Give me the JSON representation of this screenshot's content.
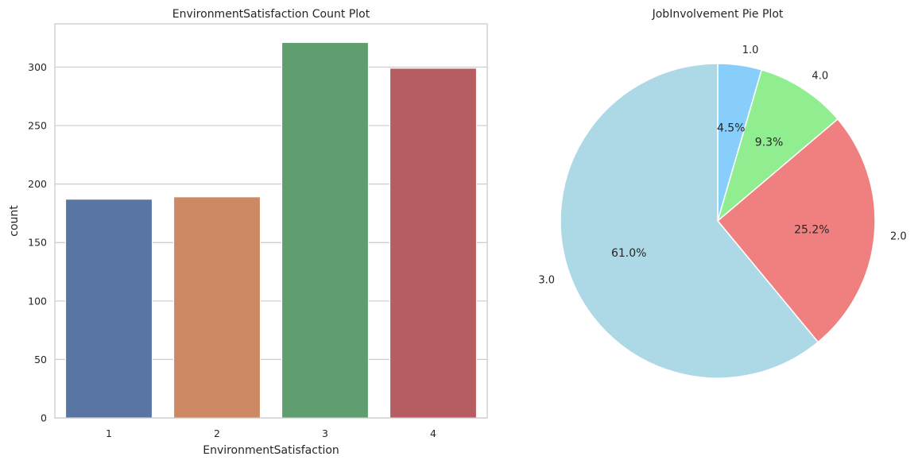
{
  "chart_data": [
    {
      "type": "bar",
      "title": "EnvironmentSatisfaction Count Plot",
      "xlabel": "EnvironmentSatisfaction",
      "ylabel": "count",
      "categories": [
        "1",
        "2",
        "3",
        "4"
      ],
      "values": [
        187,
        189,
        321,
        299
      ],
      "colors": [
        "#5875a4",
        "#cc8963",
        "#5f9e6e",
        "#b55d60"
      ],
      "ylim": [
        0,
        337
      ],
      "yticks": [
        0,
        50,
        100,
        150,
        200,
        250,
        300
      ],
      "grid": true
    },
    {
      "type": "pie",
      "title": "JobInvolvement Pie Plot",
      "slices": [
        {
          "label": "1.0",
          "value": 4.5,
          "pct_label": "4.5%",
          "color": "#87cefa"
        },
        {
          "label": "4.0",
          "value": 9.3,
          "pct_label": "9.3%",
          "color": "#90ee90"
        },
        {
          "label": "2.0",
          "value": 25.2,
          "pct_label": "25.2%",
          "color": "#f08080"
        },
        {
          "label": "3.0",
          "value": 61.0,
          "pct_label": "61.0%",
          "color": "#add8e6"
        }
      ],
      "start_angle": 90,
      "direction": "clockwise"
    }
  ]
}
